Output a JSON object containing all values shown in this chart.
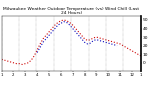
{
  "title": "Milwaukee Weather Outdoor Temperature (vs) Wind Chill (Last 24 Hours)",
  "title_fontsize": 3.2,
  "background_color": "#ffffff",
  "plot_bg_color": "#ffffff",
  "grid_color": "#888888",
  "n_points": 48,
  "temp_color": "#cc0000",
  "windchill_color": "#0000bb",
  "ylim": [
    -10,
    55
  ],
  "yticks": [
    0,
    10,
    20,
    30,
    40,
    50
  ],
  "ytick_labels": [
    "0",
    "10",
    "20",
    "30",
    "40",
    "50"
  ],
  "ylabel_fontsize": 3.2,
  "xlabel_fontsize": 2.8,
  "n_gridlines": 8,
  "temp_values": [
    4,
    3,
    2,
    1,
    0,
    -1,
    -1,
    -2,
    -1,
    0,
    3,
    8,
    15,
    22,
    28,
    32,
    36,
    40,
    44,
    47,
    49,
    50,
    49,
    47,
    44,
    40,
    36,
    32,
    28,
    26,
    27,
    29,
    30,
    29,
    28,
    27,
    26,
    25,
    24,
    23,
    22,
    20,
    18,
    16,
    14,
    12,
    10,
    8
  ],
  "windchill_values": [
    null,
    null,
    null,
    null,
    null,
    null,
    null,
    null,
    null,
    null,
    null,
    null,
    12,
    18,
    24,
    28,
    32,
    36,
    40,
    44,
    46,
    48,
    47,
    44,
    40,
    36,
    32,
    28,
    24,
    22,
    23,
    26,
    27,
    26,
    25,
    24,
    23,
    22,
    21,
    20,
    null,
    null,
    null,
    null,
    null,
    null,
    null,
    null
  ],
  "xtick_positions": [
    0,
    4,
    8,
    12,
    16,
    20,
    24,
    28,
    32,
    36,
    40,
    44,
    47
  ],
  "xtick_labels": [
    "1",
    "2",
    "3",
    "4",
    "5",
    "6",
    "7",
    "8",
    "9",
    "10",
    "11",
    "12",
    "1"
  ]
}
